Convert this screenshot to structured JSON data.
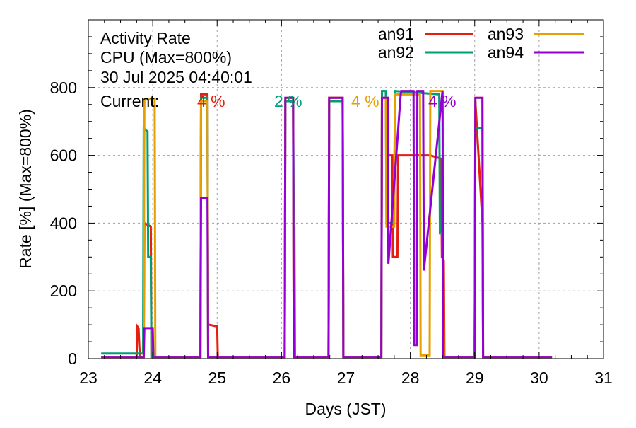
{
  "header": {
    "title_line1": "Activity Rate",
    "title_line2": "CPU (Max=800%)",
    "timestamp": "30 Jul 2025 04:40:01",
    "current_label": "Current:"
  },
  "current": [
    {
      "series": "an91",
      "text": "4 %"
    },
    {
      "series": "an92",
      "text": "2 %"
    },
    {
      "series": "an93",
      "text": "4 %"
    },
    {
      "series": "an94",
      "text": "4 %"
    }
  ],
  "colors": {
    "an91": "#e51e10",
    "an92": "#009e73",
    "an93": "#e69f00",
    "an94": "#9400d3"
  },
  "chart_data": {
    "type": "line",
    "xlabel": "Days (JST)",
    "ylabel": "Rate [%]  (Max=800%)",
    "xlim": [
      23,
      31
    ],
    "ylim": [
      0,
      1000
    ],
    "xticks": [
      23,
      24,
      25,
      26,
      27,
      28,
      29,
      30,
      31
    ],
    "yticks": [
      0,
      200,
      400,
      600,
      800
    ],
    "grid": true,
    "legend_position": "top-right",
    "series": [
      {
        "name": "an91",
        "x": [
          23.2,
          23.75,
          23.76,
          23.78,
          23.8,
          23.86,
          23.87,
          23.97,
          23.98,
          24.05,
          24.7,
          24.74,
          24.75,
          24.85,
          24.86,
          24.88,
          25.0,
          25.01,
          25.1,
          26.05,
          26.06,
          26.18,
          26.19,
          26.73,
          26.74,
          26.95,
          26.96,
          27.55,
          27.56,
          27.65,
          27.66,
          27.72,
          27.73,
          27.8,
          27.81,
          28.3,
          28.31,
          28.48,
          28.49,
          28.52,
          28.53,
          29.0,
          29.01,
          29.12,
          29.13,
          30.2
        ],
        "y": [
          5,
          5,
          95,
          90,
          5,
          5,
          400,
          390,
          5,
          5,
          5,
          5,
          780,
          780,
          100,
          100,
          95,
          5,
          5,
          5,
          760,
          760,
          5,
          5,
          770,
          770,
          5,
          5,
          770,
          770,
          600,
          600,
          300,
          300,
          600,
          600,
          600,
          590,
          300,
          290,
          5,
          5,
          760,
          400,
          5,
          5
        ]
      },
      {
        "name": "an92",
        "x": [
          23.2,
          23.85,
          23.86,
          23.92,
          23.93,
          23.97,
          23.98,
          24.05,
          24.7,
          24.74,
          24.75,
          24.85,
          24.86,
          25.1,
          26.05,
          26.06,
          26.18,
          26.19,
          26.2,
          26.21,
          26.73,
          26.74,
          26.95,
          26.96,
          27.55,
          27.56,
          27.62,
          27.63,
          27.75,
          27.76,
          28.45,
          28.46,
          28.5,
          28.51,
          29.0,
          29.01,
          29.12,
          29.13,
          30.2
        ],
        "y": [
          15,
          15,
          680,
          670,
          300,
          300,
          5,
          5,
          5,
          5,
          770,
          770,
          5,
          5,
          5,
          760,
          760,
          390,
          390,
          5,
          5,
          760,
          760,
          5,
          5,
          790,
          790,
          400,
          400,
          790,
          780,
          370,
          370,
          5,
          5,
          680,
          680,
          5,
          5
        ]
      },
      {
        "name": "an93",
        "x": [
          23.2,
          23.86,
          23.87,
          24.03,
          24.04,
          24.7,
          24.74,
          24.75,
          24.85,
          24.86,
          25.1,
          26.05,
          26.06,
          26.18,
          26.19,
          26.73,
          26.74,
          26.95,
          26.96,
          27.55,
          27.56,
          27.62,
          27.63,
          27.75,
          27.76,
          28.15,
          28.16,
          28.3,
          28.31,
          28.5,
          28.51,
          28.52,
          29.0,
          29.01,
          29.12,
          29.13,
          30.2
        ],
        "y": [
          5,
          5,
          765,
          765,
          5,
          5,
          5,
          760,
          760,
          5,
          5,
          5,
          770,
          770,
          5,
          5,
          770,
          770,
          5,
          5,
          770,
          770,
          390,
          390,
          780,
          780,
          10,
          10,
          790,
          790,
          400,
          5,
          5,
          770,
          770,
          5,
          5
        ]
      },
      {
        "name": "an94",
        "x": [
          23.2,
          23.86,
          23.87,
          24.0,
          24.01,
          24.7,
          24.74,
          24.75,
          24.85,
          24.86,
          25.1,
          26.05,
          26.06,
          26.18,
          26.19,
          26.73,
          26.74,
          26.95,
          26.96,
          27.55,
          27.56,
          27.65,
          27.66,
          27.85,
          27.86,
          28.05,
          28.06,
          28.1,
          28.11,
          28.2,
          28.21,
          28.5,
          28.51,
          29.0,
          29.01,
          29.12,
          29.13,
          30.2
        ],
        "y": [
          5,
          5,
          90,
          90,
          5,
          5,
          5,
          475,
          475,
          5,
          5,
          5,
          770,
          770,
          5,
          5,
          770,
          770,
          5,
          5,
          770,
          770,
          280,
          780,
          790,
          790,
          40,
          40,
          790,
          790,
          260,
          790,
          5,
          5,
          770,
          770,
          5,
          5
        ]
      }
    ]
  }
}
